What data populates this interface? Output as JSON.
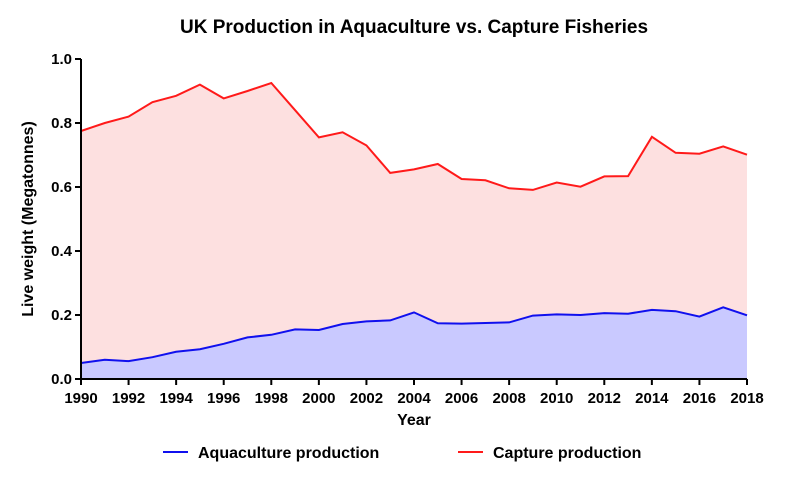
{
  "colors": {
    "aquaculture_line": "#1010ee",
    "aquaculture_fill": "#c9c9ff",
    "capture_line": "#ff1a1a",
    "capture_fill": "#fde0e0",
    "axis": "#000000"
  },
  "chart_data": {
    "type": "area",
    "title": "UK Production in Aquaculture vs. Capture Fisheries",
    "xlabel": "Year",
    "ylabel": "Live weight (Megatonnes)",
    "xlim": [
      1990,
      2018
    ],
    "ylim": [
      0,
      1.0
    ],
    "x_ticks": [
      1990,
      1992,
      1994,
      1996,
      1998,
      2000,
      2002,
      2004,
      2006,
      2008,
      2010,
      2012,
      2014,
      2016,
      2018
    ],
    "y_ticks": [
      "0.0",
      "0.2",
      "0.4",
      "0.6",
      "0.8",
      "1.0"
    ],
    "grid": false,
    "legend_position": "bottom",
    "x": [
      1990,
      1991,
      1992,
      1993,
      1994,
      1995,
      1996,
      1997,
      1998,
      1999,
      2000,
      2001,
      2002,
      2003,
      2004,
      2005,
      2006,
      2007,
      2008,
      2009,
      2010,
      2011,
      2012,
      2013,
      2014,
      2015,
      2016,
      2017,
      2018
    ],
    "series": [
      {
        "name": "Aquaculture production",
        "color": "#1010ee",
        "values": [
          0.05,
          0.06,
          0.056,
          0.068,
          0.085,
          0.093,
          0.11,
          0.13,
          0.138,
          0.155,
          0.153,
          0.172,
          0.18,
          0.183,
          0.208,
          0.174,
          0.173,
          0.175,
          0.177,
          0.198,
          0.202,
          0.2,
          0.206,
          0.204,
          0.216,
          0.212,
          0.195,
          0.224,
          0.199
        ]
      },
      {
        "name": "Capture production",
        "color": "#ff1a1a",
        "values": [
          0.775,
          0.8,
          0.82,
          0.865,
          0.885,
          0.92,
          0.877,
          0.9,
          0.925,
          0.84,
          0.755,
          0.771,
          0.73,
          0.644,
          0.655,
          0.672,
          0.625,
          0.621,
          0.596,
          0.591,
          0.614,
          0.601,
          0.633,
          0.634,
          0.757,
          0.707,
          0.704,
          0.727,
          0.701
        ]
      }
    ]
  }
}
